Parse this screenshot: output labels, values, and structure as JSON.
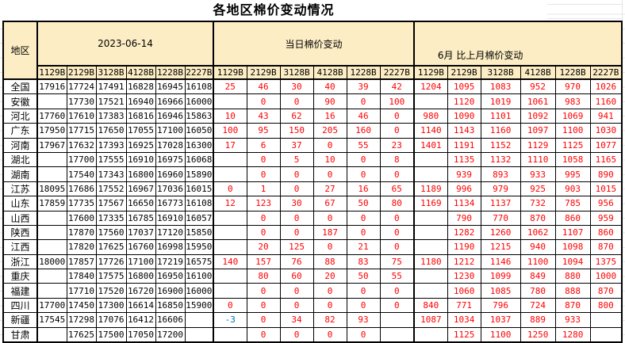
{
  "title": "各地区棉价变动情况",
  "colors": {
    "header_bg": "#FCEDC4",
    "price_text": "#000000",
    "positive_change": "#FF0000",
    "negative_change": "#0070C0",
    "border": "#000000"
  },
  "table": {
    "region_header": "地区",
    "groups": [
      {
        "label": "2023-06-14",
        "columns": [
          "1129B",
          "2129B",
          "3128B",
          "4128B",
          "1228B",
          "2227B"
        ]
      },
      {
        "label": "当日棉价变动",
        "columns": [
          "1129B",
          "2129B",
          "3128B",
          "4128B",
          "1228B",
          "2227B"
        ]
      },
      {
        "label": "6月 比上月棉价变动",
        "columns": [
          "1129B",
          "2129B",
          "3128B",
          "4128B",
          "1228B",
          "2227B"
        ]
      }
    ],
    "rows": [
      {
        "region": "全国",
        "price": [
          "17916",
          "17724",
          "17491",
          "16828",
          "16945",
          "16108"
        ],
        "day_change": [
          "25",
          "46",
          "30",
          "40",
          "39",
          "42"
        ],
        "month_change": [
          "1204",
          "1095",
          "1083",
          "952",
          "970",
          "1026"
        ]
      },
      {
        "region": "安徽",
        "price": [
          "",
          "17730",
          "17521",
          "16940",
          "16966",
          "16000"
        ],
        "day_change": [
          "",
          "0",
          "0",
          "90",
          "0",
          "100"
        ],
        "month_change": [
          "",
          "1120",
          "1019",
          "1061",
          "983",
          "1160"
        ]
      },
      {
        "region": "河北",
        "price": [
          "17760",
          "17610",
          "17383",
          "16816",
          "16946",
          "15863"
        ],
        "day_change": [
          "10",
          "43",
          "62",
          "16",
          "46",
          "0"
        ],
        "month_change": [
          "980",
          "1090",
          "1101",
          "1092",
          "1069",
          "941"
        ]
      },
      {
        "region": "广东",
        "price": [
          "17950",
          "17715",
          "17650",
          "17055",
          "17100",
          "16050"
        ],
        "day_change": [
          "100",
          "95",
          "150",
          "205",
          "160",
          "0"
        ],
        "month_change": [
          "1140",
          "1143",
          "1160",
          "1097",
          "1100",
          "1030"
        ]
      },
      {
        "region": "河南",
        "price": [
          "17967",
          "17632",
          "17393",
          "16925",
          "17028",
          "16300"
        ],
        "day_change": [
          "17",
          "6",
          "37",
          "0",
          "55",
          "23"
        ],
        "month_change": [
          "1401",
          "1191",
          "1152",
          "1129",
          "1125",
          "1077"
        ]
      },
      {
        "region": "湖北",
        "price": [
          "",
          "17700",
          "17555",
          "16910",
          "16975",
          "16068"
        ],
        "day_change": [
          "",
          "0",
          "5",
          "10",
          "0",
          "8"
        ],
        "month_change": [
          "",
          "1135",
          "1132",
          "1110",
          "1058",
          "1165"
        ]
      },
      {
        "region": "湖南",
        "price": [
          "",
          "17540",
          "17343",
          "16800",
          "16960",
          "15890"
        ],
        "day_change": [
          "",
          "0",
          "0",
          "0",
          "0",
          "0"
        ],
        "month_change": [
          "",
          "939",
          "893",
          "933",
          "995",
          "890"
        ]
      },
      {
        "region": "江苏",
        "price": [
          "18095",
          "17686",
          "17552",
          "16967",
          "17036",
          "16015"
        ],
        "day_change": [
          "0",
          "1",
          "0",
          "27",
          "16",
          "65"
        ],
        "month_change": [
          "1189",
          "996",
          "979",
          "925",
          "903",
          "1015"
        ]
      },
      {
        "region": "山东",
        "price": [
          "17859",
          "17735",
          "17567",
          "16650",
          "16773",
          "16108"
        ],
        "day_change": [
          "12",
          "123",
          "30",
          "67",
          "50",
          "80"
        ],
        "month_change": [
          "1169",
          "1134",
          "1137",
          "732",
          "785",
          "956"
        ]
      },
      {
        "region": "山西",
        "price": [
          "",
          "17600",
          "17335",
          "16785",
          "16910",
          "16057"
        ],
        "day_change": [
          "",
          "0",
          "0",
          "0",
          "0",
          "0"
        ],
        "month_change": [
          "",
          "790",
          "770",
          "870",
          "860",
          "959"
        ]
      },
      {
        "region": "陕西",
        "price": [
          "",
          "17870",
          "17560",
          "17037",
          "17120",
          "15850"
        ],
        "day_change": [
          "",
          "0",
          "0",
          "187",
          "0",
          "0"
        ],
        "month_change": [
          "",
          "1282",
          "1260",
          "1062",
          "1107",
          "860"
        ]
      },
      {
        "region": "江西",
        "price": [
          "",
          "17820",
          "17625",
          "16760",
          "16998",
          "15950"
        ],
        "day_change": [
          "",
          "20",
          "125",
          "0",
          "21",
          "0"
        ],
        "month_change": [
          "",
          "1190",
          "1215",
          "940",
          "1098",
          "870"
        ]
      },
      {
        "region": "浙江",
        "price": [
          "18000",
          "17857",
          "17726",
          "17100",
          "17219",
          "16575"
        ],
        "day_change": [
          "140",
          "157",
          "76",
          "88",
          "83",
          "75"
        ],
        "month_change": [
          "1180",
          "1212",
          "1146",
          "1100",
          "1094",
          "1375"
        ]
      },
      {
        "region": "重庆",
        "price": [
          "",
          "17840",
          "17575",
          "16800",
          "16950",
          "16100"
        ],
        "day_change": [
          "",
          "80",
          "60",
          "20",
          "50",
          "55"
        ],
        "month_change": [
          "",
          "1230",
          "1099",
          "849",
          "880",
          "1000"
        ]
      },
      {
        "region": "福建",
        "price": [
          "",
          "17710",
          "17520",
          "16720",
          "16900",
          "16000"
        ],
        "day_change": [
          "",
          "0",
          "0",
          "0",
          "0",
          "0"
        ],
        "month_change": [
          "",
          "1060",
          "1085",
          "780",
          "888",
          "870"
        ]
      },
      {
        "region": "四川",
        "price": [
          "17700",
          "17450",
          "17300",
          "16614",
          "16850",
          "15900"
        ],
        "day_change": [
          "0",
          "0",
          "0",
          "0",
          "0",
          "0"
        ],
        "month_change": [
          "840",
          "771",
          "796",
          "724",
          "870",
          "800"
        ]
      },
      {
        "region": "新疆",
        "price": [
          "17545",
          "17298",
          "17076",
          "16412",
          "16606",
          ""
        ],
        "day_change": [
          "-3",
          "0",
          "34",
          "82",
          "93",
          ""
        ],
        "month_change": [
          "1087",
          "1034",
          "1037",
          "889",
          "933",
          ""
        ]
      },
      {
        "region": "甘肃",
        "price": [
          "",
          "17625",
          "17500",
          "17050",
          "17200",
          ""
        ],
        "day_change": [
          "",
          "0",
          "0",
          "0",
          "0",
          ""
        ],
        "month_change": [
          "",
          "1125",
          "1100",
          "1250",
          "1280",
          ""
        ]
      }
    ]
  }
}
